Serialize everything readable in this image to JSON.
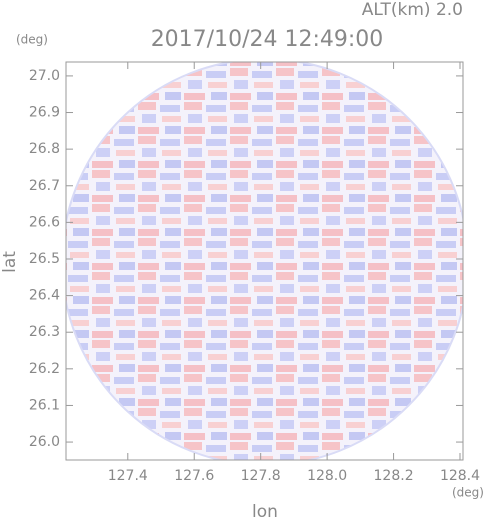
{
  "chart_data": {
    "type": "radar-field",
    "title": "2017/10/24 12:49:00",
    "subtitle": "ALT(km) 2.0",
    "x_label": "lon",
    "y_label": "lat",
    "x_unit": "(deg)",
    "y_unit": "(deg)",
    "xlim": [
      127.214,
      128.409
    ],
    "ylim": [
      25.951,
      27.038
    ],
    "xticks": [
      127.4,
      127.6,
      127.8,
      {
        "value": 128.0,
        "label": "128.0"
      },
      128.2,
      128.4
    ],
    "yticks": [
      {
        "value": 26.0,
        "label": "26.0"
      },
      26.1,
      26.2,
      26.3,
      26.4,
      26.5,
      26.6,
      26.7,
      26.8,
      26.9,
      {
        "value": 27.0,
        "label": "27.0"
      }
    ]
  }
}
